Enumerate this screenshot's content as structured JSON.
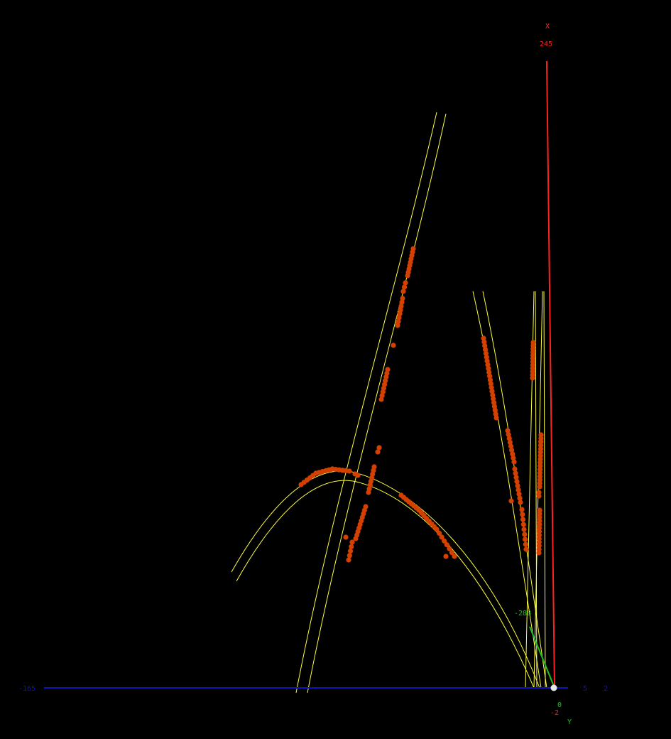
{
  "colors": {
    "background": "#000000",
    "x_axis": "#ff2020",
    "y_axis": "#20c020",
    "z_axis": "#1010c0",
    "track_curve": "#ffff40",
    "hit_point": "#d44000",
    "origin_marker": "#e8e8e8"
  },
  "axes": {
    "x": {
      "name": "X",
      "max_label": "245",
      "min_label": "-2"
    },
    "y": {
      "name": "Y",
      "min_label": "-288",
      "max_label": "0"
    },
    "z": {
      "min_label": "-165",
      "max_label": "5",
      "extra_label": "2"
    }
  },
  "icons": {
    "origin": "origin-marker-icon"
  }
}
